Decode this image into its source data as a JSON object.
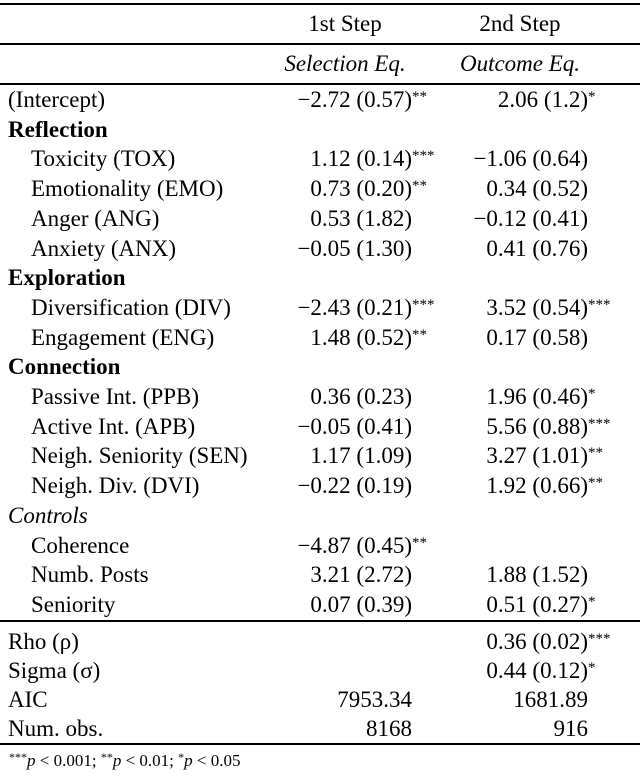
{
  "page": {
    "background": "#ffffff",
    "text_color": "#000000",
    "rule_color": "#000000"
  },
  "table": {
    "col_headers": [
      "1st Step",
      "2nd Step"
    ],
    "eq_headers": [
      "Selection Eq.",
      "Outcome Eq."
    ],
    "rows": [
      {
        "label": "(Intercept)",
        "indent": false,
        "style": "normal",
        "c1": "−2.72 (0.57)",
        "c1_stars": "**",
        "c2": "2.06 (1.2)",
        "c2_stars": "*"
      },
      {
        "label": "Reflection",
        "indent": false,
        "style": "bold",
        "c1": "",
        "c1_stars": "",
        "c2": "",
        "c2_stars": ""
      },
      {
        "label": "Toxicity (TOX)",
        "indent": true,
        "style": "normal",
        "c1": "1.12 (0.14)",
        "c1_stars": "***",
        "c2": "−1.06 (0.64)",
        "c2_stars": ""
      },
      {
        "label": "Emotionality (EMO)",
        "indent": true,
        "style": "normal",
        "c1": "0.73 (0.20)",
        "c1_stars": "**",
        "c2": "0.34 (0.52)",
        "c2_stars": ""
      },
      {
        "label": "Anger (ANG)",
        "indent": true,
        "style": "normal",
        "c1": "0.53 (1.82)",
        "c1_stars": "",
        "c2": "−0.12 (0.41)",
        "c2_stars": ""
      },
      {
        "label": "Anxiety (ANX)",
        "indent": true,
        "style": "normal",
        "c1": "−0.05 (1.30)",
        "c1_stars": "",
        "c2": "0.41 (0.76)",
        "c2_stars": ""
      },
      {
        "label": "Exploration",
        "indent": false,
        "style": "bold",
        "c1": "",
        "c1_stars": "",
        "c2": "",
        "c2_stars": ""
      },
      {
        "label": "Diversification (DIV)",
        "indent": true,
        "style": "normal",
        "c1": "−2.43 (0.21)",
        "c1_stars": "***",
        "c2": "3.52 (0.54)",
        "c2_stars": "***"
      },
      {
        "label": "Engagement (ENG)",
        "indent": true,
        "style": "normal",
        "c1": "1.48 (0.52)",
        "c1_stars": "**",
        "c2": "0.17 (0.58)",
        "c2_stars": ""
      },
      {
        "label": "Connection",
        "indent": false,
        "style": "bold",
        "c1": "",
        "c1_stars": "",
        "c2": "",
        "c2_stars": ""
      },
      {
        "label": "Passive Int. (PPB)",
        "indent": true,
        "style": "normal",
        "c1": "0.36 (0.23)",
        "c1_stars": "",
        "c2": "1.96 (0.46)",
        "c2_stars": "*"
      },
      {
        "label": "Active Int. (APB)",
        "indent": true,
        "style": "normal",
        "c1": "−0.05 (0.41)",
        "c1_stars": "",
        "c2": "5.56 (0.88)",
        "c2_stars": "***"
      },
      {
        "label": "Neigh. Seniority (SEN)",
        "indent": true,
        "style": "normal",
        "c1": "1.17 (1.09)",
        "c1_stars": "",
        "c2": "3.27 (1.01)",
        "c2_stars": "**"
      },
      {
        "label": "Neigh. Div. (DVI)",
        "indent": true,
        "style": "normal",
        "c1": "−0.22 (0.19)",
        "c1_stars": "",
        "c2": "1.92 (0.66)",
        "c2_stars": "**"
      },
      {
        "label": "Controls",
        "indent": false,
        "style": "italic",
        "c1": "",
        "c1_stars": "",
        "c2": "",
        "c2_stars": ""
      },
      {
        "label": "Coherence",
        "indent": true,
        "style": "normal",
        "c1": "−4.87 (0.45)",
        "c1_stars": "**",
        "c2": "",
        "c2_stars": ""
      },
      {
        "label": "Numb. Posts",
        "indent": true,
        "style": "normal",
        "c1": "3.21 (2.72)",
        "c1_stars": "",
        "c2": "1.88 (1.52)",
        "c2_stars": ""
      },
      {
        "label": "Seniority",
        "indent": true,
        "style": "normal",
        "c1": "0.07 (0.39)",
        "c1_stars": "",
        "c2": "0.51 (0.27)",
        "c2_stars": "*"
      }
    ],
    "stats_rows": [
      {
        "label": "Rho (ρ)",
        "indent": false,
        "style": "normal",
        "c1": "",
        "c1_stars": "",
        "c2": "0.36 (0.02)",
        "c2_stars": "***"
      },
      {
        "label": "Sigma (σ)",
        "indent": false,
        "style": "normal",
        "c1": "",
        "c1_stars": "",
        "c2": "0.44 (0.12)",
        "c2_stars": "*"
      },
      {
        "label": "AIC",
        "indent": false,
        "style": "normal",
        "c1": "7953.34",
        "c1_stars": "",
        "c2": "1681.89",
        "c2_stars": ""
      },
      {
        "label": "Num. obs.",
        "indent": false,
        "style": "normal",
        "c1": "8168",
        "c1_stars": "",
        "c2": "916",
        "c2_stars": ""
      }
    ],
    "footnote": [
      {
        "stars": "***",
        "p": "p",
        "rest": " < 0.001; "
      },
      {
        "stars": "**",
        "p": "p",
        "rest": " < 0.01; "
      },
      {
        "stars": "*",
        "p": "p",
        "rest": " < 0.05"
      }
    ]
  }
}
